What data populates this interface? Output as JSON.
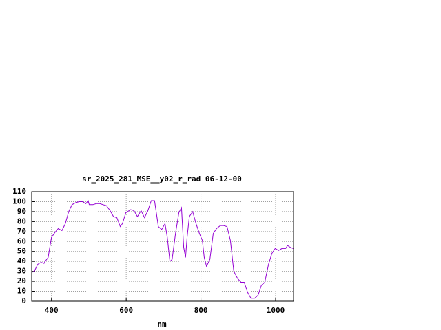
{
  "chart_data": {
    "type": "line",
    "title": "sr_2025_281_MSE__y02_r_rad 06-12-00",
    "x_label": "nm",
    "x": [
      347,
      354,
      363,
      372,
      380,
      383,
      391,
      394,
      400,
      409,
      418,
      428,
      437,
      446,
      455,
      465,
      474,
      483,
      492,
      498,
      501,
      511,
      520,
      529,
      538,
      547,
      557,
      566,
      575,
      584,
      590,
      599,
      612,
      621,
      630,
      640,
      649,
      658,
      667,
      676,
      686,
      695,
      704,
      710,
      717,
      723,
      732,
      741,
      748,
      754,
      759,
      763,
      769,
      778,
      787,
      796,
      804,
      809,
      815,
      824,
      833,
      842,
      852,
      861,
      870,
      879,
      888,
      898,
      907,
      916,
      925,
      934,
      944,
      953,
      962,
      971,
      981,
      990,
      999,
      1008,
      1017,
      1027,
      1032,
      1040,
      1047
    ],
    "series": [
      {
        "color": "#9400d3",
        "values": [
          29,
          30,
          37,
          39,
          38,
          40,
          44,
          51,
          64,
          69,
          73,
          71,
          78,
          90,
          97,
          99,
          100,
          100,
          98,
          101,
          97,
          97,
          98,
          98,
          97,
          96,
          91,
          85,
          84,
          75,
          78,
          89,
          92,
          91,
          85,
          91,
          84,
          91,
          101,
          101,
          75,
          72,
          78,
          64,
          40,
          42,
          68,
          89,
          94,
          54,
          44,
          64,
          85,
          90,
          78,
          68,
          61,
          44,
          35,
          42,
          68,
          73,
          76,
          76,
          75,
          61,
          30,
          23,
          19,
          19,
          9,
          3,
          3,
          6,
          16,
          19,
          37,
          48,
          53,
          51,
          53,
          53,
          56,
          54,
          53
        ]
      }
    ],
    "xlim": [
      347,
      1048
    ],
    "ylim": [
      0,
      110
    ],
    "xticks": [
      400,
      600,
      800,
      1000
    ],
    "yticks": [
      0,
      10,
      20,
      30,
      40,
      50,
      60,
      70,
      80,
      90,
      100,
      110
    ],
    "grid": true
  }
}
